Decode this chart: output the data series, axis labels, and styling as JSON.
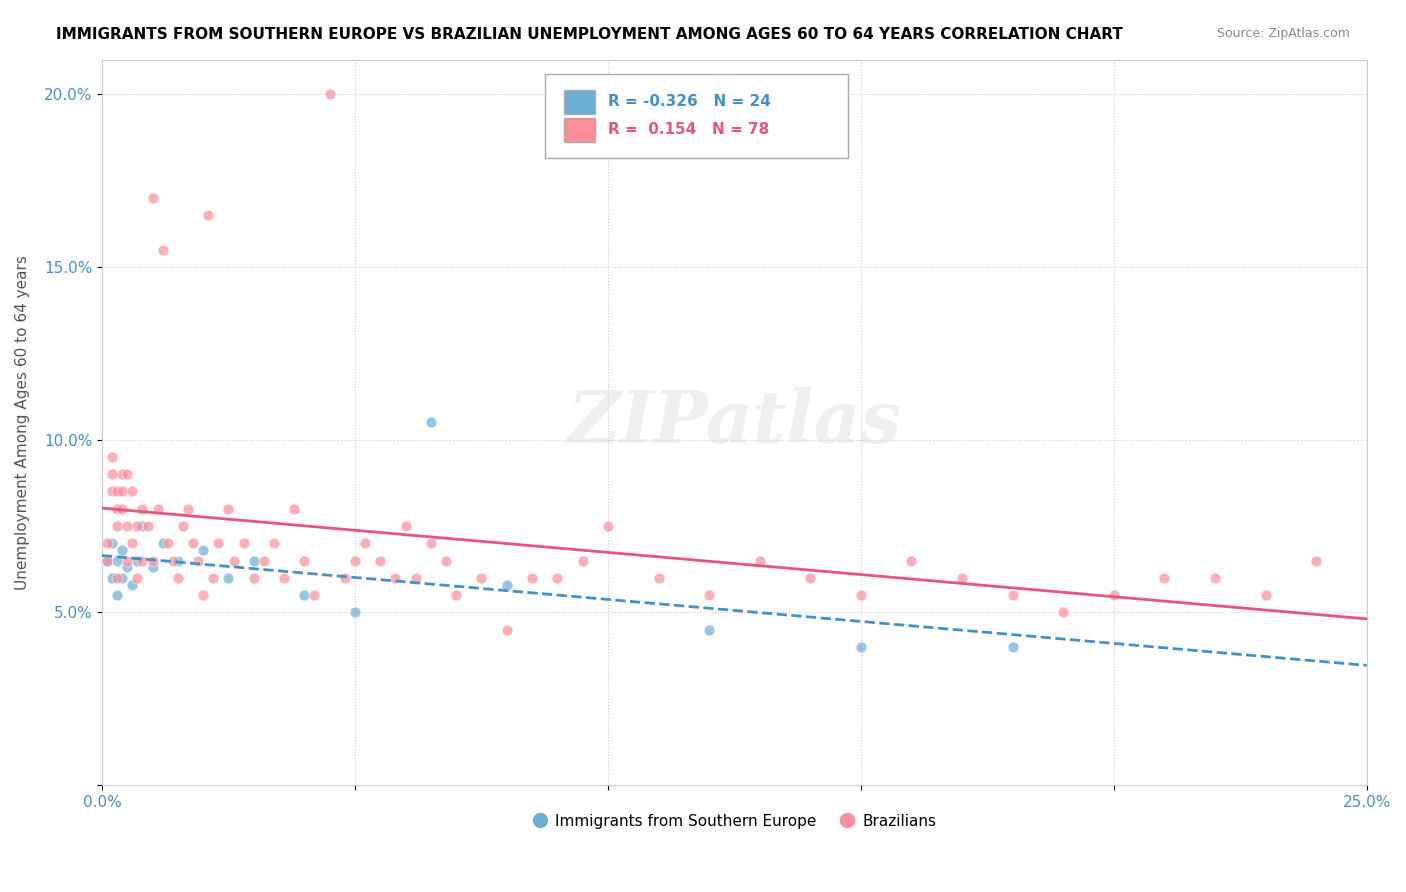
{
  "title": "IMMIGRANTS FROM SOUTHERN EUROPE VS BRAZILIAN UNEMPLOYMENT AMONG AGES 60 TO 64 YEARS CORRELATION CHART",
  "source": "Source: ZipAtlas.com",
  "xlabel": "",
  "ylabel": "Unemployment Among Ages 60 to 64 years",
  "xlim": [
    0.0,
    0.25
  ],
  "ylim": [
    0.0,
    0.21
  ],
  "xticks": [
    0.0,
    0.05,
    0.1,
    0.15,
    0.2,
    0.25
  ],
  "xticklabels": [
    "0.0%",
    "",
    "",
    "",
    "",
    "25.0%"
  ],
  "yticks": [
    0.0,
    0.05,
    0.1,
    0.15,
    0.2
  ],
  "yticklabels": [
    "",
    "5.0%",
    "10.0%",
    "15.0%",
    "20.0%"
  ],
  "blue_R": -0.326,
  "blue_N": 24,
  "pink_R": 0.154,
  "pink_N": 78,
  "blue_color": "#6baed6",
  "pink_color": "#fc8d99",
  "blue_line_color": "#4292c6",
  "pink_line_color": "#e75480",
  "watermark": "ZIPatlas",
  "legend_label_blue": "Immigrants from Southern Europe",
  "legend_label_pink": "Brazilians",
  "blue_scatter_x": [
    0.001,
    0.002,
    0.002,
    0.003,
    0.003,
    0.004,
    0.004,
    0.005,
    0.006,
    0.007,
    0.008,
    0.01,
    0.012,
    0.015,
    0.02,
    0.025,
    0.03,
    0.04,
    0.05,
    0.065,
    0.08,
    0.12,
    0.15,
    0.18
  ],
  "blue_scatter_y": [
    0.065,
    0.06,
    0.07,
    0.055,
    0.065,
    0.068,
    0.06,
    0.063,
    0.058,
    0.065,
    0.075,
    0.063,
    0.07,
    0.065,
    0.068,
    0.06,
    0.065,
    0.055,
    0.05,
    0.105,
    0.058,
    0.045,
    0.04,
    0.04
  ],
  "pink_scatter_x": [
    0.001,
    0.001,
    0.002,
    0.002,
    0.002,
    0.003,
    0.003,
    0.003,
    0.003,
    0.004,
    0.004,
    0.004,
    0.005,
    0.005,
    0.005,
    0.006,
    0.006,
    0.007,
    0.007,
    0.008,
    0.008,
    0.009,
    0.01,
    0.01,
    0.011,
    0.012,
    0.013,
    0.014,
    0.015,
    0.016,
    0.017,
    0.018,
    0.019,
    0.02,
    0.021,
    0.022,
    0.023,
    0.025,
    0.026,
    0.028,
    0.03,
    0.032,
    0.034,
    0.036,
    0.038,
    0.04,
    0.042,
    0.045,
    0.048,
    0.05,
    0.052,
    0.055,
    0.058,
    0.06,
    0.062,
    0.065,
    0.068,
    0.07,
    0.075,
    0.08,
    0.085,
    0.09,
    0.095,
    0.1,
    0.11,
    0.12,
    0.13,
    0.14,
    0.15,
    0.16,
    0.17,
    0.18,
    0.19,
    0.2,
    0.21,
    0.22,
    0.23,
    0.24
  ],
  "pink_scatter_y": [
    0.065,
    0.07,
    0.09,
    0.085,
    0.095,
    0.075,
    0.08,
    0.085,
    0.06,
    0.09,
    0.085,
    0.08,
    0.075,
    0.065,
    0.09,
    0.07,
    0.085,
    0.075,
    0.06,
    0.08,
    0.065,
    0.075,
    0.17,
    0.065,
    0.08,
    0.155,
    0.07,
    0.065,
    0.06,
    0.075,
    0.08,
    0.07,
    0.065,
    0.055,
    0.165,
    0.06,
    0.07,
    0.08,
    0.065,
    0.07,
    0.06,
    0.065,
    0.07,
    0.06,
    0.08,
    0.065,
    0.055,
    0.2,
    0.06,
    0.065,
    0.07,
    0.065,
    0.06,
    0.075,
    0.06,
    0.07,
    0.065,
    0.055,
    0.06,
    0.045,
    0.06,
    0.06,
    0.065,
    0.075,
    0.06,
    0.055,
    0.065,
    0.06,
    0.055,
    0.065,
    0.06,
    0.055,
    0.05,
    0.055,
    0.06,
    0.06,
    0.055,
    0.065
  ]
}
